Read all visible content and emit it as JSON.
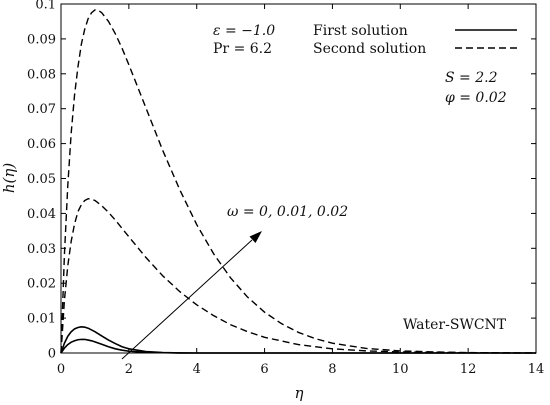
{
  "chart_data": {
    "type": "line",
    "xlabel": "η",
    "ylabel": "h(η)",
    "xlim": [
      0,
      14
    ],
    "ylim": [
      0,
      0.1
    ],
    "xticks": [
      "0",
      "2",
      "4",
      "6",
      "8",
      "10",
      "12",
      "14"
    ],
    "yticks": [
      "0",
      "0.01",
      "0.02",
      "0.03",
      "0.04",
      "0.05",
      "0.06",
      "0.07",
      "0.08",
      "0.09",
      "0.1"
    ],
    "legend": {
      "position": "top-right",
      "entries": [
        {
          "label": "First solution",
          "style": "solid"
        },
        {
          "label": "Second solution",
          "style": "dashed"
        }
      ]
    },
    "annotations": {
      "param_eps": "ε = −1.0",
      "param_pr": "Pr = 6.2",
      "param_s": "S = 2.2",
      "param_phi": "φ = 0.02",
      "omega": "ω = 0, 0.01, 0.02",
      "fluid": "Water-SWCNT"
    },
    "series": [
      {
        "style": "solid",
        "x": [
          0,
          0.1,
          0.2,
          0.3,
          0.4,
          0.5,
          0.6,
          0.7,
          0.8,
          0.9,
          1.0,
          1.2,
          1.4,
          1.6,
          1.8,
          2.0,
          2.5,
          3.0,
          3.5,
          4.0,
          5.0,
          6.0,
          8.0,
          10.0,
          14.0
        ],
        "y": [
          0,
          0.0014,
          0.0024,
          0.0031,
          0.0035,
          0.0038,
          0.0039,
          0.0039,
          0.0037,
          0.0035,
          0.0032,
          0.0025,
          0.0018,
          0.0012,
          0.0008,
          0.0005,
          0.0002,
          7e-05,
          2e-05,
          0.0,
          0,
          0,
          0,
          0,
          0
        ]
      },
      {
        "style": "solid",
        "x": [
          0,
          0.1,
          0.2,
          0.3,
          0.4,
          0.5,
          0.6,
          0.7,
          0.8,
          0.9,
          1.0,
          1.2,
          1.4,
          1.6,
          1.8,
          2.0,
          2.5,
          3.0,
          3.5,
          4.0,
          5.0,
          6.0,
          8.0,
          10.0,
          14.0
        ],
        "y": [
          0,
          0.0028,
          0.0048,
          0.0061,
          0.0069,
          0.0073,
          0.0075,
          0.0074,
          0.0071,
          0.0066,
          0.0061,
          0.0049,
          0.0037,
          0.0027,
          0.0018,
          0.0012,
          0.0004,
          0.00012,
          3e-05,
          0.0,
          0,
          0,
          0,
          0,
          0
        ]
      },
      {
        "style": "dashed",
        "x": [
          0,
          0.1,
          0.2,
          0.3,
          0.4,
          0.5,
          0.6,
          0.7,
          0.8,
          0.9,
          1.0,
          1.2,
          1.4,
          1.6,
          1.8,
          2.0,
          2.5,
          3.0,
          3.5,
          4.0,
          4.5,
          5.0,
          5.5,
          6.0,
          7.0,
          8.0,
          9.0,
          10.0,
          11.0,
          12.0,
          13.0,
          14.0
        ],
        "y": [
          0,
          0.015,
          0.025,
          0.032,
          0.037,
          0.0405,
          0.0425,
          0.0437,
          0.0442,
          0.0441,
          0.0437,
          0.0422,
          0.0403,
          0.0381,
          0.0357,
          0.0333,
          0.0274,
          0.0221,
          0.0176,
          0.0138,
          0.0107,
          0.0081,
          0.0061,
          0.0045,
          0.0024,
          0.0012,
          0.0006,
          0.0003,
          0.00015,
          7e-05,
          3e-05,
          0.0
        ]
      },
      {
        "style": "dashed",
        "x": [
          0,
          0.1,
          0.2,
          0.3,
          0.4,
          0.5,
          0.6,
          0.7,
          0.8,
          0.9,
          1.0,
          1.1,
          1.2,
          1.4,
          1.6,
          1.8,
          2.0,
          2.5,
          3.0,
          3.5,
          4.0,
          4.5,
          5.0,
          5.5,
          6.0,
          6.5,
          7.0,
          7.5,
          8.0,
          9.0,
          10.0,
          11.0,
          12.0,
          13.0,
          14.0
        ],
        "y": [
          0,
          0.028,
          0.048,
          0.063,
          0.074,
          0.082,
          0.0885,
          0.0928,
          0.0958,
          0.0975,
          0.0983,
          0.0982,
          0.0975,
          0.095,
          0.0915,
          0.0873,
          0.0826,
          0.0703,
          0.058,
          0.0468,
          0.0368,
          0.0284,
          0.0215,
          0.016,
          0.0117,
          0.0084,
          0.0059,
          0.0041,
          0.0028,
          0.0013,
          0.0006,
          0.0003,
          0.00012,
          5e-05,
          0.0
        ]
      }
    ]
  }
}
